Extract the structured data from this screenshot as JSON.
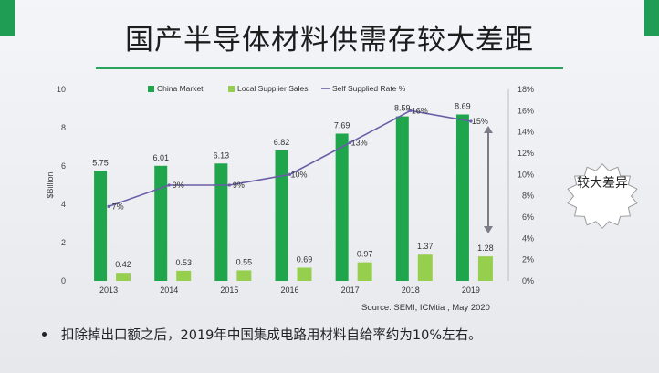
{
  "slide": {
    "title": "国产半导体材料供需存较大差距",
    "source": "Source: SEMI, ICMtia , May 2020",
    "callout": "较大差异",
    "bullet": "扣除掉出口额之后，2019年中国集成电路用材料自给率约为10%左右。"
  },
  "colors": {
    "china_market": "#1fa54c",
    "local_supplier": "#96cf4e",
    "rate_line": "#6b5ea8",
    "arrow": "#7d7d88"
  },
  "chart_data": {
    "type": "bar",
    "categories": [
      "2013",
      "2014",
      "2015",
      "2016",
      "2017",
      "2018",
      "2019"
    ],
    "series": [
      {
        "name": "China Market",
        "values": [
          5.75,
          6.01,
          6.13,
          6.82,
          7.69,
          8.59,
          8.69
        ]
      },
      {
        "name": "Local Supplier Sales",
        "values": [
          0.42,
          0.53,
          0.55,
          0.69,
          0.97,
          1.37,
          1.28
        ]
      }
    ],
    "line_series": {
      "name": "Self Supplied Rate %",
      "values": [
        7,
        9,
        9,
        10,
        13,
        16,
        15
      ],
      "labels": [
        "7%",
        "9%",
        "9%",
        "10%",
        "13%",
        "16%",
        "15%"
      ]
    },
    "value_labels": {
      "china_market": [
        "5.75",
        "6.01",
        "6.13",
        "6.82",
        "7.69",
        "8.59",
        "8.69"
      ],
      "local_supplier": [
        "0.42",
        "0.53",
        "0.55",
        "0.69",
        "0.97",
        "1.37",
        "1.28"
      ]
    },
    "ylabel": "$Billion",
    "ylim": [
      0,
      10
    ],
    "yticks": [
      "0",
      "2",
      "4",
      "6",
      "8",
      "10"
    ],
    "y2lim": [
      0,
      18
    ],
    "y2ticks": [
      "0%",
      "2%",
      "4%",
      "6%",
      "8%",
      "10%",
      "12%",
      "14%",
      "16%",
      "18%"
    ],
    "legend_position": "top"
  }
}
